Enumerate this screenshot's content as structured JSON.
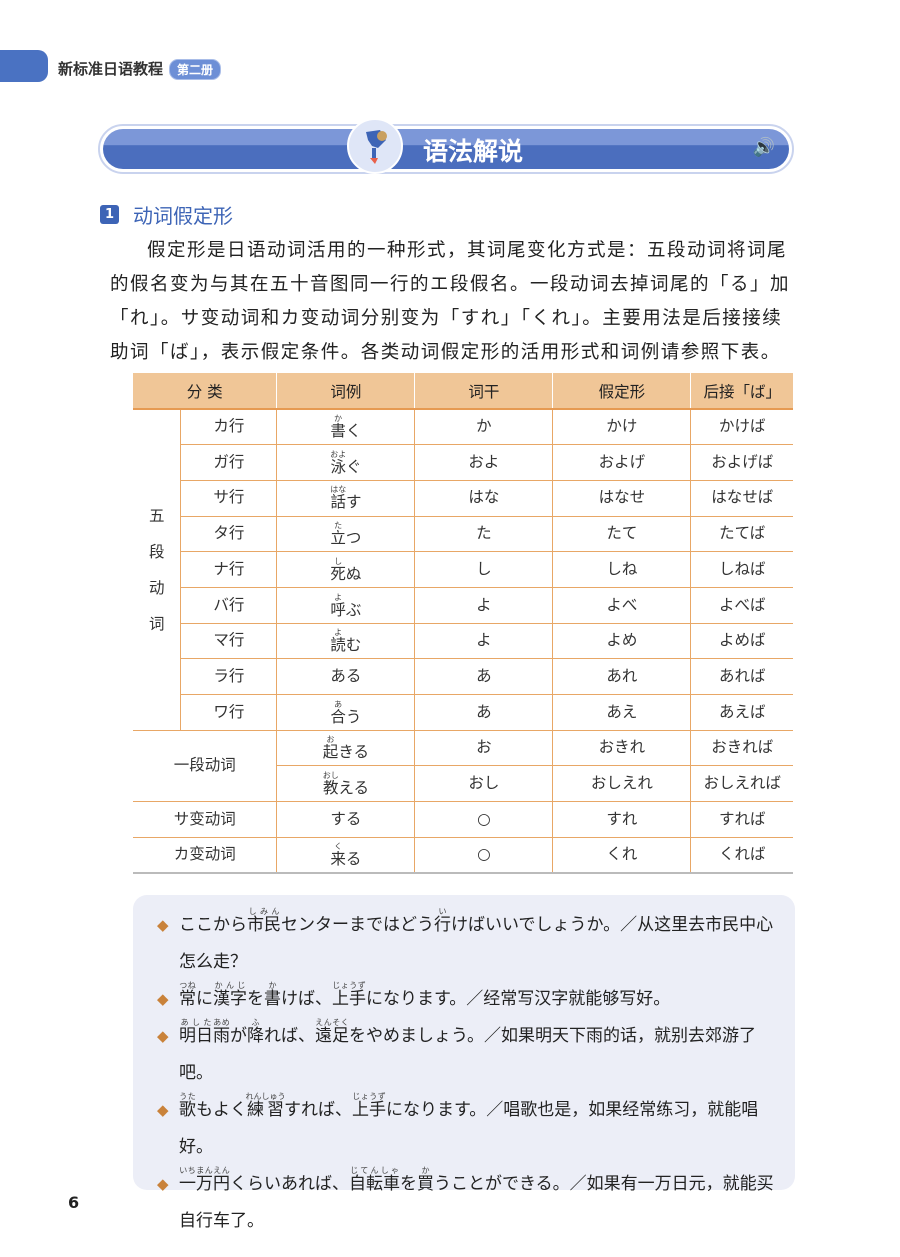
{
  "header": {
    "book_title": "新标准日语教程",
    "volume": "第二册"
  },
  "banner": {
    "title": "语法解说",
    "icon": "mascot-icon",
    "audio_icon": "speaker-icon"
  },
  "section": {
    "number": "1",
    "title": "动词假定形"
  },
  "paragraph": "假定形是日语动词活用的一种形式，其词尾变化方式是：五段动词将词尾的假名变为与其在五十音图同一行的エ段假名。一段动词去掉词尾的「る」加「れ」。サ变动词和カ变动词分别变为「すれ」「くれ」。主要用法是后接接续助词「ば」，表示假定条件。各类动词假定形的活用形式和词例请参照下表。",
  "table": {
    "headers": [
      "分 类",
      "词例",
      "词干",
      "假定形",
      "后接「ば」"
    ],
    "group_godan": "五段动词",
    "group_ichidan": "一段动词",
    "rows": [
      {
        "cat": "カ行",
        "word": [
          {
            "t": "書",
            "r": "か"
          },
          {
            "t": "く"
          }
        ],
        "stem": "か",
        "katei": "かけ",
        "ba": "かけば"
      },
      {
        "cat": "ガ行",
        "word": [
          {
            "t": "泳",
            "r": "およ"
          },
          {
            "t": "ぐ"
          }
        ],
        "stem": "およ",
        "katei": "およげ",
        "ba": "およげば"
      },
      {
        "cat": "サ行",
        "word": [
          {
            "t": "話",
            "r": "はな"
          },
          {
            "t": "す"
          }
        ],
        "stem": "はな",
        "katei": "はなせ",
        "ba": "はなせば"
      },
      {
        "cat": "タ行",
        "word": [
          {
            "t": "立",
            "r": "た"
          },
          {
            "t": "つ"
          }
        ],
        "stem": "た",
        "katei": "たて",
        "ba": "たてば"
      },
      {
        "cat": "ナ行",
        "word": [
          {
            "t": "死",
            "r": "し"
          },
          {
            "t": "ぬ"
          }
        ],
        "stem": "し",
        "katei": "しね",
        "ba": "しねば"
      },
      {
        "cat": "バ行",
        "word": [
          {
            "t": "呼",
            "r": "よ"
          },
          {
            "t": "ぶ"
          }
        ],
        "stem": "よ",
        "katei": "よべ",
        "ba": "よべば"
      },
      {
        "cat": "マ行",
        "word": [
          {
            "t": "読",
            "r": "よ"
          },
          {
            "t": "む"
          }
        ],
        "stem": "よ",
        "katei": "よめ",
        "ba": "よめば"
      },
      {
        "cat": "ラ行",
        "word": [
          {
            "t": "ある"
          }
        ],
        "stem": "あ",
        "katei": "あれ",
        "ba": "あれば"
      },
      {
        "cat": "ワ行",
        "word": [
          {
            "t": "合",
            "r": "あ"
          },
          {
            "t": "う"
          }
        ],
        "stem": "あ",
        "katei": "あえ",
        "ba": "あえば"
      },
      {
        "cat": "",
        "word": [
          {
            "t": "起",
            "r": "お"
          },
          {
            "t": "きる"
          }
        ],
        "stem": "お",
        "katei": "おきれ",
        "ba": "おきれば"
      },
      {
        "cat": "",
        "word": [
          {
            "t": "教",
            "r": "おし"
          },
          {
            "t": "える"
          }
        ],
        "stem": "おし",
        "katei": "おしえれ",
        "ba": "おしえれば"
      },
      {
        "cat": "サ变动词",
        "word": [
          {
            "t": "する"
          }
        ],
        "stem": "○",
        "katei": "すれ",
        "ba": "すれば"
      },
      {
        "cat": "カ变动词",
        "word": [
          {
            "t": "来",
            "r": "く"
          },
          {
            "t": "る"
          }
        ],
        "stem": "○",
        "katei": "くれ",
        "ba": "くれば"
      }
    ]
  },
  "examples": [
    [
      {
        "t": "ここから"
      },
      {
        "t": "市民",
        "r": "しみん"
      },
      {
        "t": "センターまではどう"
      },
      {
        "t": "行",
        "r": "い"
      },
      {
        "t": "けばいいでしょうか。／从这里去市民中心怎么走？"
      }
    ],
    [
      {
        "t": "常",
        "r": "つね"
      },
      {
        "t": "に"
      },
      {
        "t": "漢字",
        "r": "かんじ"
      },
      {
        "t": "を"
      },
      {
        "t": "書",
        "r": "か"
      },
      {
        "t": "けば、"
      },
      {
        "t": "上手",
        "r": "じょうず"
      },
      {
        "t": "になります。／经常写汉字就能够写好。"
      }
    ],
    [
      {
        "t": "明日",
        "r": "あした"
      },
      {
        "t": "雨",
        "r": "あめ"
      },
      {
        "t": "が"
      },
      {
        "t": "降",
        "r": "ふ"
      },
      {
        "t": "れば、"
      },
      {
        "t": "遠足",
        "r": "えんそく"
      },
      {
        "t": "をやめましょう。／如果明天下雨的话，就别去郊游了吧。"
      }
    ],
    [
      {
        "t": "歌",
        "r": "うた"
      },
      {
        "t": "もよく"
      },
      {
        "t": "練習",
        "r": "れんしゅう"
      },
      {
        "t": "すれば、"
      },
      {
        "t": "上手",
        "r": "じょうず"
      },
      {
        "t": "になります。／唱歌也是，如果经常练习，就能唱好。"
      }
    ],
    [
      {
        "t": "一万円",
        "r": "いちまんえん"
      },
      {
        "t": "くらいあれば、"
      },
      {
        "t": "自転車",
        "r": "じてんしゃ"
      },
      {
        "t": "を"
      },
      {
        "t": "買",
        "r": "か"
      },
      {
        "t": "うことができる。／如果有一万日元，就能买自行车了。"
      }
    ]
  ],
  "page_number": "6",
  "colors": {
    "accent": "#3d64b6",
    "table_header": "#f0c697",
    "table_line": "#e8a766",
    "example_bg": "#eceef7",
    "bullet": "#c9823a"
  }
}
